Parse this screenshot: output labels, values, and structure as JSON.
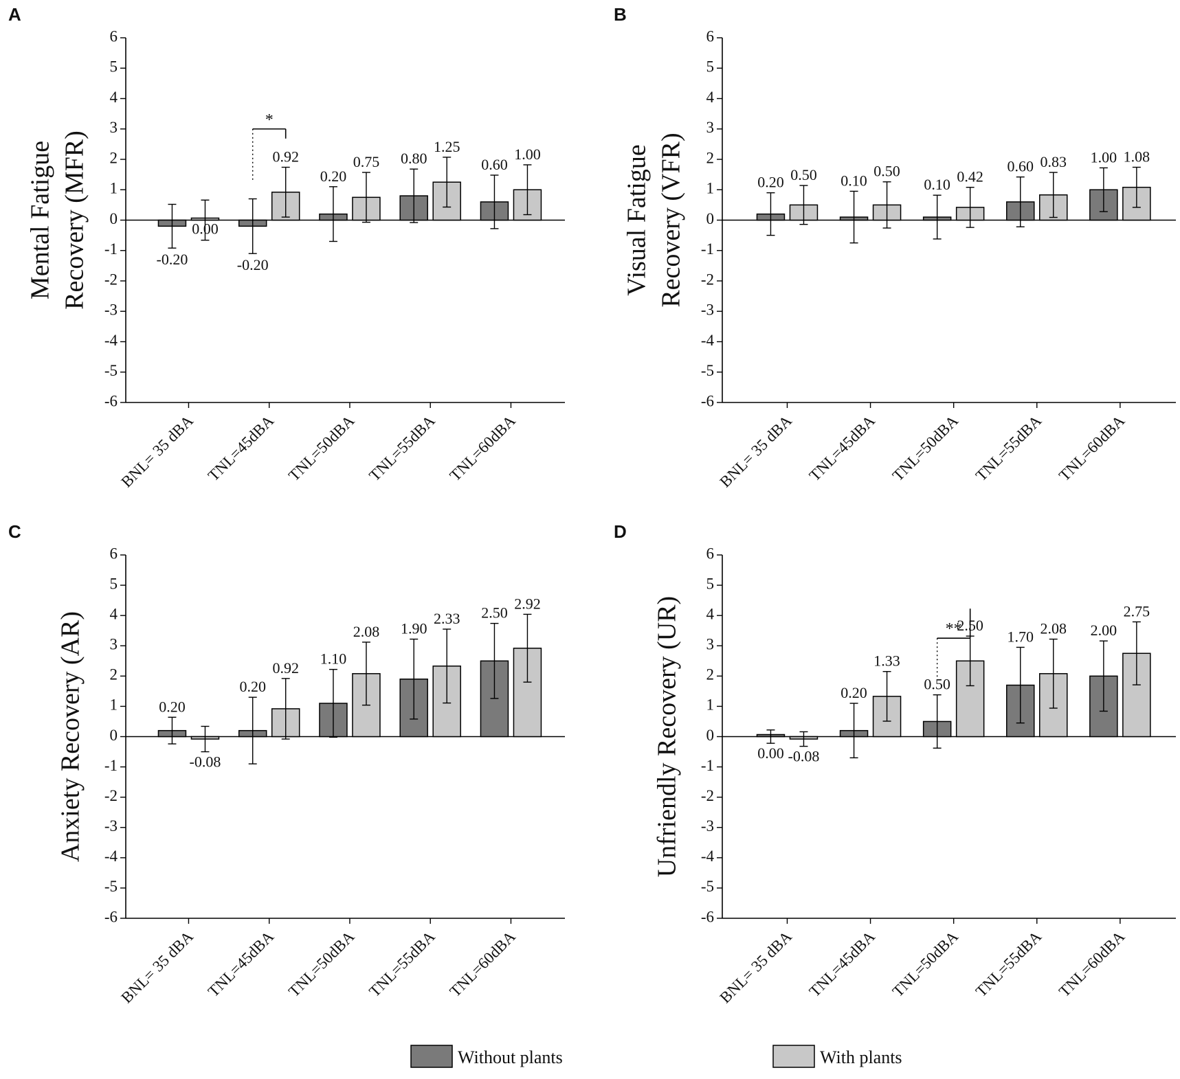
{
  "colors": {
    "without": "#7a7a7a",
    "with": "#c8c8c8",
    "stroke": "#000000"
  },
  "legend": {
    "without_label": "Without plants",
    "with_label": "With plants"
  },
  "chart_data": [
    {
      "panel": "A",
      "type": "bar",
      "ylabel_line1": "Mental Fatigue",
      "ylabel_line2": "Recovery (MFR)",
      "ylim": [
        -6,
        6
      ],
      "yticks": [
        "6",
        "5",
        "4",
        "3",
        "2",
        "1",
        "0",
        "-1",
        "-2",
        "-3",
        "-4",
        "-5",
        "-6"
      ],
      "categories": [
        "BNL= 35 dBA",
        "TNL=45dBA",
        "TNL=50dBA",
        "TNL=55dBA",
        "TNL=60dBA"
      ],
      "series": [
        {
          "name": "Without plants",
          "values": [
            -0.2,
            -0.2,
            0.2,
            0.8,
            0.6
          ],
          "labels": [
            "-0.20",
            "-0.20",
            "0.20",
            "0.80",
            "0.60"
          ],
          "errors": [
            0.72,
            0.9,
            0.9,
            0.88,
            0.88
          ]
        },
        {
          "name": "With plants",
          "values": [
            0.0,
            0.92,
            0.75,
            1.25,
            1.0
          ],
          "labels": [
            "0.00",
            "0.92",
            "0.75",
            "1.25",
            "1.00"
          ],
          "errors": [
            0.66,
            0.82,
            0.82,
            0.82,
            0.82
          ]
        }
      ],
      "significance": [
        {
          "category_index": 1,
          "label": "*",
          "bracket_y": 3.0
        }
      ]
    },
    {
      "panel": "B",
      "type": "bar",
      "ylabel_line1": "Visual Fatigue",
      "ylabel_line2": "Recovery (VFR)",
      "ylim": [
        -6,
        6
      ],
      "yticks": [
        "6",
        "5",
        "4",
        "3",
        "2",
        "1",
        "0",
        "-1",
        "-2",
        "-3",
        "-4",
        "-5",
        "-6"
      ],
      "categories": [
        "BNL= 35 dBA",
        "TNL=45dBA",
        "TNL=50dBA",
        "TNL=55dBA",
        "TNL=60dBA"
      ],
      "series": [
        {
          "name": "Without plants",
          "values": [
            0.2,
            0.1,
            0.1,
            0.6,
            1.0
          ],
          "labels": [
            "0.20",
            "0.10",
            "0.10",
            "0.60",
            "1.00"
          ],
          "errors": [
            0.7,
            0.85,
            0.72,
            0.82,
            0.72
          ]
        },
        {
          "name": "With plants",
          "values": [
            0.5,
            0.5,
            0.42,
            0.83,
            1.08
          ],
          "labels": [
            "0.50",
            "0.50",
            "0.42",
            "0.83",
            "1.08"
          ],
          "errors": [
            0.64,
            0.76,
            0.66,
            0.74,
            0.66
          ]
        }
      ],
      "significance": []
    },
    {
      "panel": "C",
      "type": "bar",
      "ylabel_line1": "Anxiety Recovery (AR)",
      "ylabel_line2": "",
      "ylim": [
        -6,
        6
      ],
      "yticks": [
        "6",
        "5",
        "4",
        "3",
        "2",
        "1",
        "0",
        "-1",
        "-2",
        "-3",
        "-4",
        "-5",
        "-6"
      ],
      "categories": [
        "BNL= 35 dBA",
        "TNL=45dBA",
        "TNL=50dBA",
        "TNL=55dBA",
        "TNL=60dBA"
      ],
      "series": [
        {
          "name": "Without plants",
          "values": [
            0.2,
            0.2,
            1.1,
            1.9,
            2.5
          ],
          "labels": [
            "0.20",
            "0.20",
            "1.10",
            "1.90",
            "2.50"
          ],
          "errors": [
            0.44,
            1.1,
            1.12,
            1.32,
            1.24
          ]
        },
        {
          "name": "With plants",
          "values": [
            -0.08,
            0.92,
            2.08,
            2.33,
            2.92
          ],
          "labels": [
            "-0.08",
            "0.92",
            "2.08",
            "2.33",
            "2.92"
          ],
          "errors": [
            0.42,
            1.0,
            1.04,
            1.22,
            1.12
          ]
        }
      ],
      "significance": []
    },
    {
      "panel": "D",
      "type": "bar",
      "ylabel_line1": "Unfriendly Recovery (UR)",
      "ylabel_line2": "",
      "ylim": [
        -6,
        6
      ],
      "yticks": [
        "6",
        "5",
        "4",
        "3",
        "2",
        "1",
        "0",
        "-1",
        "-2",
        "-3",
        "-4",
        "-5",
        "-6"
      ],
      "categories": [
        "BNL= 35 dBA",
        "TNL=45dBA",
        "TNL=50dBA",
        "TNL=55dBA",
        "TNL=60dBA"
      ],
      "series": [
        {
          "name": "Without plants",
          "values": [
            0.0,
            0.2,
            0.5,
            1.7,
            2.0
          ],
          "labels": [
            "0.00",
            "0.20",
            "0.50",
            "1.70",
            "2.00"
          ],
          "errors": [
            0.22,
            0.9,
            0.88,
            1.25,
            1.16
          ]
        },
        {
          "name": "With plants",
          "values": [
            -0.08,
            1.33,
            2.5,
            2.08,
            2.75
          ],
          "labels": [
            "-0.08",
            "1.33",
            "2.50",
            "2.08",
            "2.75"
          ],
          "errors": [
            0.24,
            0.82,
            0.82,
            1.14,
            1.04
          ]
        }
      ],
      "significance": [
        {
          "category_index": 2,
          "label": "**",
          "bracket_y": 3.25
        }
      ]
    }
  ]
}
